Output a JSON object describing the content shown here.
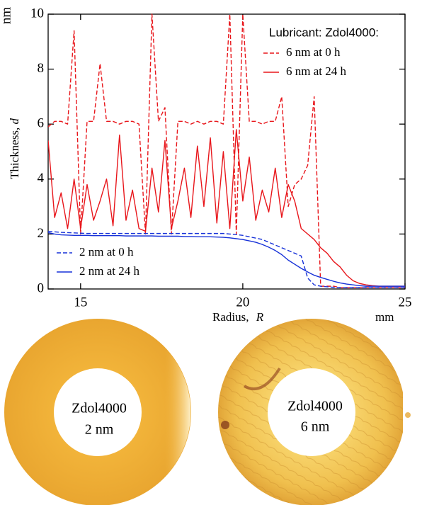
{
  "chart_data": {
    "type": "line",
    "y_label": "Thickness,",
    "y_label_var": "d",
    "y_unit": "nm",
    "x_label": "Radius,",
    "x_label_var": "R",
    "x_unit": "mm",
    "legend_title": "Lubricant: Zdol4000:",
    "xlim": [
      14,
      25
    ],
    "xticks": [
      15,
      20,
      25
    ],
    "ylim": [
      0,
      10
    ],
    "yticks": [
      0,
      2,
      4,
      6,
      8,
      10
    ],
    "x": [
      14,
      14.2,
      14.4,
      14.6,
      14.8,
      15,
      15.2,
      15.4,
      15.6,
      15.8,
      16,
      16.2,
      16.4,
      16.6,
      16.8,
      17,
      17.2,
      17.4,
      17.6,
      17.8,
      18,
      18.2,
      18.4,
      18.6,
      18.8,
      19,
      19.2,
      19.4,
      19.6,
      19.8,
      20,
      20.2,
      20.4,
      20.6,
      20.8,
      21,
      21.2,
      21.4,
      21.6,
      21.8,
      22,
      22.2,
      22.4,
      22.6,
      22.8,
      23,
      23.2,
      23.4,
      23.6,
      23.8,
      24,
      24.2,
      24.4,
      24.6,
      24.8,
      25
    ],
    "series": [
      {
        "name": "6 nm at 0 h",
        "color": "#e8161b",
        "style": "dashed",
        "legend": "top",
        "values": [
          5.9,
          6.1,
          6.1,
          6.0,
          9.4,
          2.0,
          6.1,
          6.1,
          8.2,
          6.1,
          6.1,
          6.0,
          6.1,
          6.1,
          6.0,
          2.0,
          10,
          6.1,
          6.6,
          2.0,
          6.1,
          6.1,
          6.0,
          6.1,
          6.0,
          6.1,
          6.1,
          6.0,
          10,
          2.0,
          10,
          6.1,
          6.1,
          6.0,
          6.1,
          6.1,
          7.0,
          3.0,
          3.8,
          4.0,
          4.5,
          7.0,
          0.1,
          0.1,
          0.1,
          0.05,
          0.05,
          0.05,
          0.05,
          0.05,
          0.05,
          0.05,
          0.05,
          0.05,
          0.05,
          0.05
        ]
      },
      {
        "name": "6 nm at 24 h",
        "color": "#e8161b",
        "style": "solid",
        "legend": "top",
        "values": [
          5.4,
          2.6,
          3.5,
          2.2,
          4.0,
          2.2,
          3.8,
          2.5,
          3.2,
          4.0,
          2.3,
          5.6,
          2.5,
          3.6,
          2.2,
          2.1,
          4.4,
          2.8,
          5.4,
          2.2,
          3.2,
          4.4,
          2.6,
          5.2,
          3.0,
          5.5,
          2.4,
          5.0,
          2.2,
          5.8,
          3.2,
          4.8,
          2.5,
          3.6,
          2.8,
          4.4,
          2.6,
          3.8,
          3.2,
          2.2,
          2.0,
          1.8,
          1.5,
          1.3,
          1.0,
          0.8,
          0.5,
          0.3,
          0.2,
          0.15,
          0.12,
          0.1,
          0.1,
          0.1,
          0.1,
          0.1
        ]
      },
      {
        "name": "2 nm at 0 h",
        "color": "#1631d8",
        "style": "dashed",
        "legend": "bottom",
        "values": [
          2.1,
          2.08,
          2.06,
          2.05,
          2.04,
          2.03,
          2.02,
          2.02,
          2.02,
          2.02,
          2.02,
          2.02,
          2.02,
          2.02,
          2.02,
          2.02,
          2.02,
          2.02,
          2.02,
          2.02,
          2.02,
          2.02,
          2.02,
          2.02,
          2.02,
          2.02,
          2.02,
          2.02,
          2.0,
          1.98,
          1.95,
          1.9,
          1.85,
          1.8,
          1.7,
          1.6,
          1.5,
          1.4,
          1.3,
          1.2,
          0.4,
          0.15,
          0.1,
          0.08,
          0.06,
          0.05,
          0.05,
          0.05,
          0.05,
          0.05,
          0.05,
          0.05,
          0.05,
          0.05,
          0.05,
          0.05
        ]
      },
      {
        "name": "2 nm at 24 h",
        "color": "#1631d8",
        "style": "solid",
        "legend": "bottom",
        "values": [
          2.05,
          2.0,
          1.97,
          1.96,
          1.95,
          1.95,
          1.95,
          1.94,
          1.94,
          1.94,
          1.94,
          1.94,
          1.93,
          1.93,
          1.93,
          1.93,
          1.93,
          1.92,
          1.92,
          1.92,
          1.92,
          1.91,
          1.91,
          1.9,
          1.9,
          1.9,
          1.89,
          1.88,
          1.86,
          1.83,
          1.8,
          1.75,
          1.7,
          1.62,
          1.52,
          1.4,
          1.25,
          1.05,
          0.9,
          0.75,
          0.62,
          0.5,
          0.42,
          0.35,
          0.28,
          0.22,
          0.18,
          0.15,
          0.12,
          0.1,
          0.1,
          0.1,
          0.1,
          0.1,
          0.1,
          0.1
        ]
      }
    ],
    "images": [
      {
        "label": "Zdol4000",
        "sublabel": "2 nm"
      },
      {
        "label": "Zdol4000",
        "sublabel": "6 nm"
      }
    ]
  }
}
